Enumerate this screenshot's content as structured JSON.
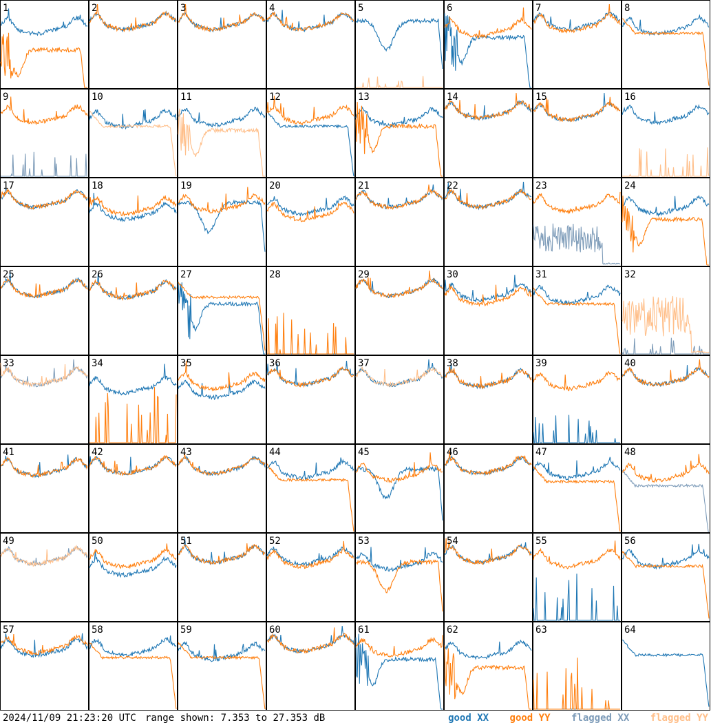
{
  "chart_data": {
    "type": "line",
    "grid": {
      "rows": 8,
      "cols": 8
    },
    "range": {
      "min_db": 7.353,
      "max_db": 27.353,
      "units": "dB"
    },
    "colors": {
      "good_xx": "#1f77b4",
      "good_yy": "#ff7f0e",
      "flagged_xx": "#7e9cb9",
      "flagged_yy": "#ffbf8a"
    },
    "panels": [
      {
        "label": "1",
        "xx": {
          "p": "normal",
          "l": 0.75,
          "f": false
        },
        "yy": {
          "p": "sagdrop",
          "l": 0.45,
          "f": false
        }
      },
      {
        "label": "2",
        "xx": {
          "p": "normal",
          "l": 0.8,
          "f": false
        },
        "yy": {
          "p": "normal",
          "l": 0.8,
          "f": false
        }
      },
      {
        "label": "3",
        "xx": {
          "p": "normal",
          "l": 0.8,
          "f": false
        },
        "yy": {
          "p": "normal",
          "l": 0.8,
          "f": false
        }
      },
      {
        "label": "4",
        "xx": {
          "p": "normal",
          "l": 0.8,
          "f": false
        },
        "yy": {
          "p": "normal",
          "l": 0.8,
          "f": false
        }
      },
      {
        "label": "5",
        "xx": {
          "p": "dip",
          "l": 0.65,
          "f": false
        },
        "yy": {
          "p": "spikes",
          "l": 0.15,
          "f": true
        }
      },
      {
        "label": "6",
        "xx": {
          "p": "sagdrop",
          "l": 0.6,
          "f": false
        },
        "yy": {
          "p": "normal",
          "l": 0.72,
          "f": false
        }
      },
      {
        "label": "7",
        "xx": {
          "p": "normal",
          "l": 0.8,
          "f": false
        },
        "yy": {
          "p": "normal",
          "l": 0.78,
          "f": false
        }
      },
      {
        "label": "8",
        "xx": {
          "p": "normal",
          "l": 0.75,
          "f": false
        },
        "yy": {
          "p": "plateau",
          "l": 0.65,
          "f": false
        }
      },
      {
        "label": "9",
        "xx": {
          "p": "spikes",
          "l": 0.3,
          "f": true
        },
        "yy": {
          "p": "normal",
          "l": 0.75,
          "f": false
        }
      },
      {
        "label": "10",
        "xx": {
          "p": "normal",
          "l": 0.7,
          "f": false
        },
        "yy": {
          "p": "plateau",
          "l": 0.6,
          "f": true
        }
      },
      {
        "label": "11",
        "xx": {
          "p": "normal",
          "l": 0.72,
          "f": false
        },
        "yy": {
          "p": "sagdrop",
          "l": 0.55,
          "f": true
        }
      },
      {
        "label": "12",
        "xx": {
          "p": "plateau",
          "l": 0.6,
          "f": false
        },
        "yy": {
          "p": "normal",
          "l": 0.75,
          "f": false
        }
      },
      {
        "label": "13",
        "xx": {
          "p": "normal",
          "l": 0.72,
          "f": false
        },
        "yy": {
          "p": "sagdrop",
          "l": 0.6,
          "f": false
        }
      },
      {
        "label": "14",
        "xx": {
          "p": "normal",
          "l": 0.8,
          "f": false
        },
        "yy": {
          "p": "normal",
          "l": 0.8,
          "f": false
        }
      },
      {
        "label": "15",
        "xx": {
          "p": "normal",
          "l": 0.78,
          "f": false
        },
        "yy": {
          "p": "normal",
          "l": 0.78,
          "f": false
        }
      },
      {
        "label": "16",
        "xx": {
          "p": "normal",
          "l": 0.75,
          "f": false
        },
        "yy": {
          "p": "spikes",
          "l": 0.4,
          "f": true
        }
      },
      {
        "label": "17",
        "xx": {
          "p": "normal",
          "l": 0.8,
          "f": false
        },
        "yy": {
          "p": "normal",
          "l": 0.8,
          "f": false
        }
      },
      {
        "label": "18",
        "xx": {
          "p": "normal",
          "l": 0.65,
          "f": false
        },
        "yy": {
          "p": "normal",
          "l": 0.72,
          "f": false
        }
      },
      {
        "label": "19",
        "xx": {
          "p": "dip",
          "l": 0.6,
          "f": false
        },
        "yy": {
          "p": "normal",
          "l": 0.75,
          "f": false
        }
      },
      {
        "label": "20",
        "xx": {
          "p": "normal",
          "l": 0.72,
          "f": false
        },
        "yy": {
          "p": "normal",
          "l": 0.65,
          "f": false
        }
      },
      {
        "label": "21",
        "xx": {
          "p": "normal",
          "l": 0.8,
          "f": false
        },
        "yy": {
          "p": "normal",
          "l": 0.8,
          "f": false
        }
      },
      {
        "label": "22",
        "xx": {
          "p": "normal",
          "l": 0.8,
          "f": false
        },
        "yy": {
          "p": "normal",
          "l": 0.8,
          "f": false
        }
      },
      {
        "label": "23",
        "xx": {
          "p": "noise",
          "l": 0.5,
          "f": true
        },
        "yy": {
          "p": "normal",
          "l": 0.75,
          "f": false
        }
      },
      {
        "label": "24",
        "xx": {
          "p": "normal",
          "l": 0.72,
          "f": false
        },
        "yy": {
          "p": "sagdrop",
          "l": 0.55,
          "f": false
        }
      },
      {
        "label": "25",
        "xx": {
          "p": "normal",
          "l": 0.8,
          "f": false
        },
        "yy": {
          "p": "normal",
          "l": 0.8,
          "f": false
        }
      },
      {
        "label": "26",
        "xx": {
          "p": "normal",
          "l": 0.78,
          "f": false
        },
        "yy": {
          "p": "normal",
          "l": 0.78,
          "f": false
        }
      },
      {
        "label": "27",
        "xx": {
          "p": "sagdrop",
          "l": 0.6,
          "f": false
        },
        "yy": {
          "p": "plateau",
          "l": 0.68,
          "f": false
        }
      },
      {
        "label": "28",
        "xx": {
          "p": "flat",
          "l": 0.0,
          "f": false
        },
        "yy": {
          "p": "spikes",
          "l": 0.65,
          "f": false
        }
      },
      {
        "label": "29",
        "xx": {
          "p": "normal",
          "l": 0.8,
          "f": false
        },
        "yy": {
          "p": "normal",
          "l": 0.8,
          "f": false
        }
      },
      {
        "label": "30",
        "xx": {
          "p": "normal",
          "l": 0.75,
          "f": false
        },
        "yy": {
          "p": "normal",
          "l": 0.7,
          "f": false
        }
      },
      {
        "label": "31",
        "xx": {
          "p": "normal",
          "l": 0.72,
          "f": false
        },
        "yy": {
          "p": "plateau",
          "l": 0.6,
          "f": false
        }
      },
      {
        "label": "32",
        "xx": {
          "p": "spikes",
          "l": 0.2,
          "f": true
        },
        "yy": {
          "p": "noise",
          "l": 0.7,
          "f": true
        }
      },
      {
        "label": "33",
        "xx": {
          "p": "normal",
          "l": 0.8,
          "f": true
        },
        "yy": {
          "p": "normal",
          "l": 0.8,
          "f": true
        }
      },
      {
        "label": "34",
        "xx": {
          "p": "normal",
          "l": 0.7,
          "f": false
        },
        "yy": {
          "p": "spikes",
          "l": 0.7,
          "f": false
        }
      },
      {
        "label": "35",
        "xx": {
          "p": "normal",
          "l": 0.65,
          "f": false
        },
        "yy": {
          "p": "normal",
          "l": 0.75,
          "f": false
        }
      },
      {
        "label": "36",
        "xx": {
          "p": "normal",
          "l": 0.8,
          "f": false
        },
        "yy": {
          "p": "normal",
          "l": 0.8,
          "f": false
        }
      },
      {
        "label": "37",
        "xx": {
          "p": "normal",
          "l": 0.8,
          "f": false
        },
        "yy": {
          "p": "normal",
          "l": 0.8,
          "f": true
        }
      },
      {
        "label": "38",
        "xx": {
          "p": "normal",
          "l": 0.78,
          "f": false
        },
        "yy": {
          "p": "normal",
          "l": 0.78,
          "f": false
        }
      },
      {
        "label": "39",
        "xx": {
          "p": "spikes",
          "l": 0.35,
          "f": false
        },
        "yy": {
          "p": "normal",
          "l": 0.75,
          "f": false
        }
      },
      {
        "label": "40",
        "xx": {
          "p": "normal",
          "l": 0.8,
          "f": false
        },
        "yy": {
          "p": "normal",
          "l": 0.8,
          "f": false
        }
      },
      {
        "label": "41",
        "xx": {
          "p": "normal",
          "l": 0.78,
          "f": false
        },
        "yy": {
          "p": "normal",
          "l": 0.78,
          "f": false
        }
      },
      {
        "label": "42",
        "xx": {
          "p": "normal",
          "l": 0.8,
          "f": false
        },
        "yy": {
          "p": "normal",
          "l": 0.8,
          "f": false
        }
      },
      {
        "label": "43",
        "xx": {
          "p": "normal",
          "l": 0.8,
          "f": false
        },
        "yy": {
          "p": "normal",
          "l": 0.8,
          "f": false
        }
      },
      {
        "label": "44",
        "xx": {
          "p": "normal",
          "l": 0.75,
          "f": false
        },
        "yy": {
          "p": "plateau",
          "l": 0.62,
          "f": false
        }
      },
      {
        "label": "45",
        "xx": {
          "p": "dip",
          "l": 0.6,
          "f": false
        },
        "yy": {
          "p": "normal",
          "l": 0.72,
          "f": false
        }
      },
      {
        "label": "46",
        "xx": {
          "p": "normal",
          "l": 0.8,
          "f": false
        },
        "yy": {
          "p": "normal",
          "l": 0.8,
          "f": false
        }
      },
      {
        "label": "47",
        "xx": {
          "p": "normal",
          "l": 0.75,
          "f": false
        },
        "yy": {
          "p": "plateau",
          "l": 0.6,
          "f": false
        }
      },
      {
        "label": "48",
        "xx": {
          "p": "plateau",
          "l": 0.55,
          "f": true
        },
        "yy": {
          "p": "normal",
          "l": 0.72,
          "f": false
        }
      },
      {
        "label": "49",
        "xx": {
          "p": "normal",
          "l": 0.78,
          "f": true
        },
        "yy": {
          "p": "normal",
          "l": 0.78,
          "f": true
        }
      },
      {
        "label": "50",
        "xx": {
          "p": "normal",
          "l": 0.65,
          "f": false
        },
        "yy": {
          "p": "normal",
          "l": 0.75,
          "f": false
        }
      },
      {
        "label": "51",
        "xx": {
          "p": "normal",
          "l": 0.8,
          "f": false
        },
        "yy": {
          "p": "normal",
          "l": 0.8,
          "f": false
        }
      },
      {
        "label": "52",
        "xx": {
          "p": "normal",
          "l": 0.78,
          "f": false
        },
        "yy": {
          "p": "normal",
          "l": 0.75,
          "f": false
        }
      },
      {
        "label": "53",
        "xx": {
          "p": "normal",
          "l": 0.72,
          "f": false
        },
        "yy": {
          "p": "dip",
          "l": 0.55,
          "f": false
        }
      },
      {
        "label": "54",
        "xx": {
          "p": "normal",
          "l": 0.8,
          "f": false
        },
        "yy": {
          "p": "normal",
          "l": 0.8,
          "f": false
        }
      },
      {
        "label": "55",
        "xx": {
          "p": "spikes",
          "l": 0.6,
          "f": false
        },
        "yy": {
          "p": "normal",
          "l": 0.75,
          "f": false
        }
      },
      {
        "label": "56",
        "xx": {
          "p": "normal",
          "l": 0.75,
          "f": false
        },
        "yy": {
          "p": "plateau",
          "l": 0.65,
          "f": false
        }
      },
      {
        "label": "57",
        "xx": {
          "p": "normal",
          "l": 0.75,
          "f": false
        },
        "yy": {
          "p": "normal",
          "l": 0.78,
          "f": false
        }
      },
      {
        "label": "58",
        "xx": {
          "p": "normal",
          "l": 0.75,
          "f": false
        },
        "yy": {
          "p": "plateau",
          "l": 0.62,
          "f": false
        }
      },
      {
        "label": "59",
        "xx": {
          "p": "normal",
          "l": 0.7,
          "f": false
        },
        "yy": {
          "p": "plateau",
          "l": 0.62,
          "f": false
        }
      },
      {
        "label": "60",
        "xx": {
          "p": "normal",
          "l": 0.8,
          "f": false
        },
        "yy": {
          "p": "normal",
          "l": 0.8,
          "f": false
        }
      },
      {
        "label": "61",
        "xx": {
          "p": "sagdrop",
          "l": 0.6,
          "f": false
        },
        "yy": {
          "p": "normal",
          "l": 0.75,
          "f": false
        }
      },
      {
        "label": "62",
        "xx": {
          "p": "normal",
          "l": 0.72,
          "f": false
        },
        "yy": {
          "p": "sagdrop",
          "l": 0.5,
          "f": false
        }
      },
      {
        "label": "63",
        "xx": {
          "p": "flat",
          "l": 0.0,
          "f": false
        },
        "yy": {
          "p": "spikes",
          "l": 0.65,
          "f": false
        }
      },
      {
        "label": "64",
        "xx": {
          "p": "plateau",
          "l": 0.65,
          "f": false
        },
        "yy": {
          "p": "none",
          "l": 0.0,
          "f": false
        }
      }
    ]
  },
  "footer": {
    "timestamp": "2024/11/09 21:23:20 UTC",
    "range_prefix": "range shown: ",
    "range_min": "7.353",
    "range_to": " to ",
    "range_max": "27.353",
    "range_units": " dB"
  },
  "legend": {
    "good_xx": "good XX",
    "good_yy": "good YY",
    "flagged_xx": "flagged XX",
    "flagged_yy": "flagged YY"
  }
}
